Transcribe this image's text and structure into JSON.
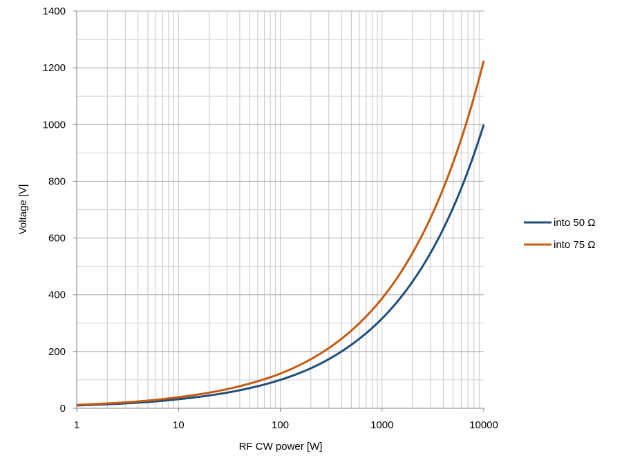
{
  "chart_data": {
    "type": "line",
    "title": "",
    "xlabel": "RF CW power [W]",
    "ylabel": "Voltage [V]",
    "x_scale": "log",
    "xlim": [
      1,
      10000
    ],
    "ylim": [
      0,
      1400
    ],
    "x_ticks": [
      1,
      10,
      100,
      1000,
      10000
    ],
    "x_tick_labels": [
      "1",
      "10",
      "100",
      "1000",
      "10000"
    ],
    "y_ticks": [
      0,
      200,
      400,
      600,
      800,
      1000,
      1200,
      1400
    ],
    "y_tick_labels": [
      "0",
      "200",
      "400",
      "600",
      "800",
      "1000",
      "1200",
      "1400"
    ],
    "grid": true,
    "legend_position": "right",
    "x": [
      1,
      2,
      5,
      10,
      20,
      50,
      100,
      200,
      500,
      1000,
      2000,
      5000,
      10000
    ],
    "series": [
      {
        "name": "into 50 Ω",
        "color": "#1f4e79",
        "values": [
          10,
          14,
          22,
          32,
          45,
          71,
          100,
          141,
          224,
          316,
          447,
          707,
          1000
        ]
      },
      {
        "name": "into 75 Ω",
        "color": "#c55a11",
        "values": [
          12,
          17,
          27,
          39,
          55,
          87,
          122,
          173,
          274,
          387,
          548,
          866,
          1225
        ]
      }
    ]
  }
}
